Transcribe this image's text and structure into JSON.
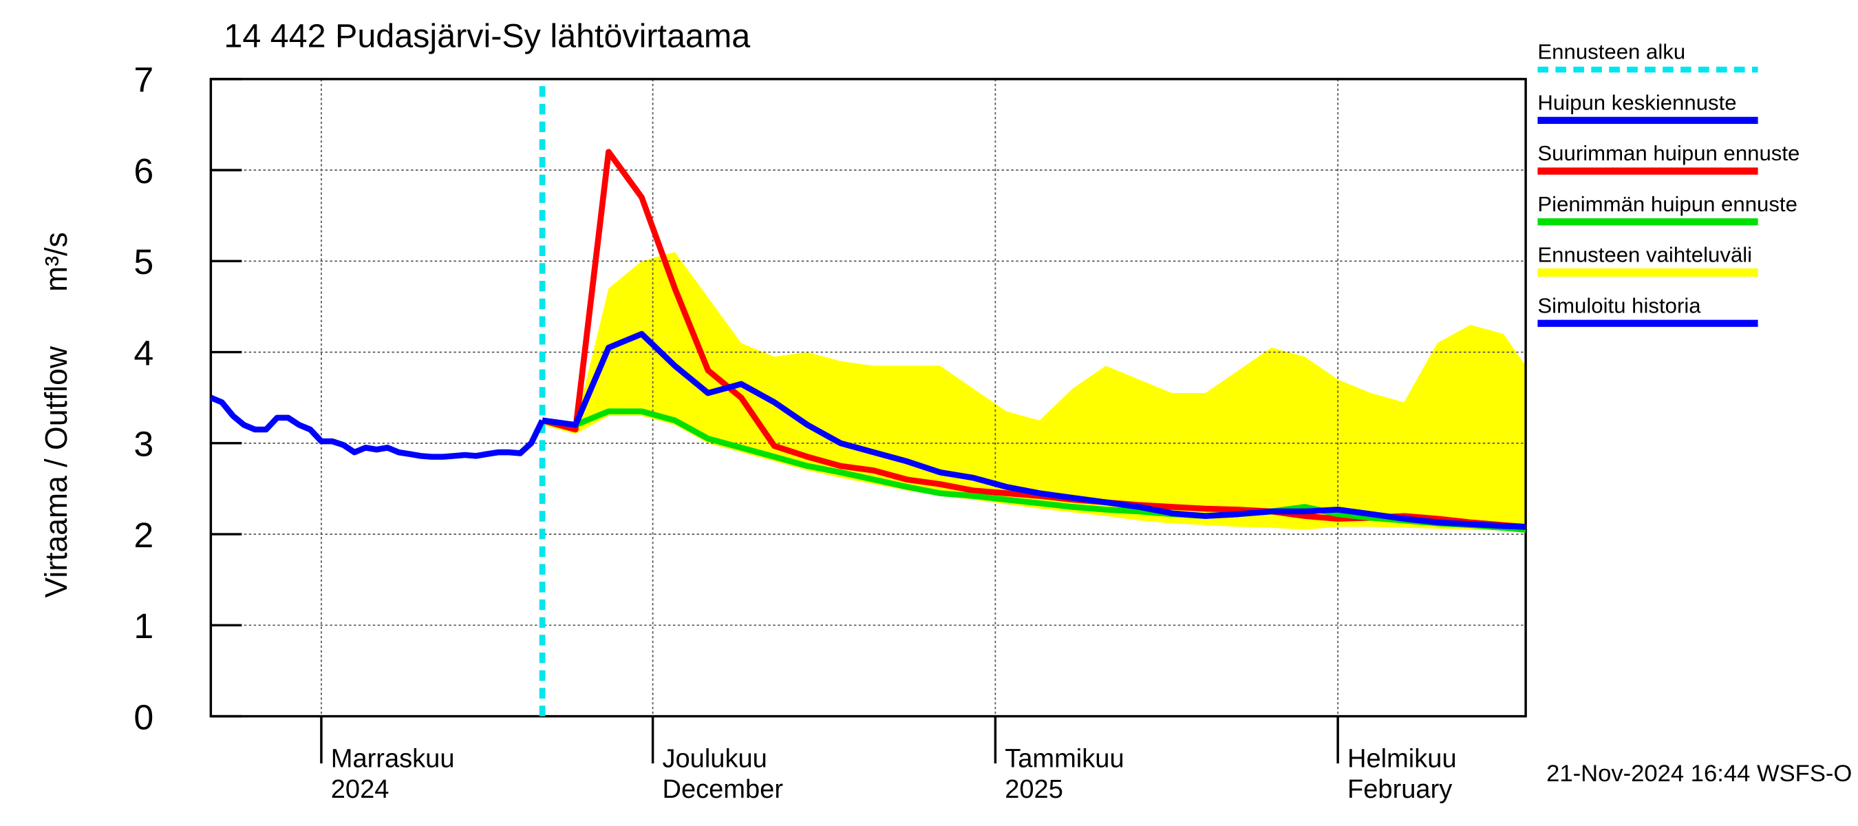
{
  "chart_data": {
    "type": "line",
    "title": "14 442 Pudasjärvi-Sy lähtövirtaama",
    "y_label": "Virtaama / Outflow",
    "y_unit": "m³/s",
    "footer": "21-Nov-2024 16:44 WSFS-O",
    "ylim": [
      0,
      7
    ],
    "yticks": [
      0,
      1,
      2,
      3,
      4,
      5,
      6,
      7
    ],
    "xlim": [
      0,
      119
    ],
    "xticks": [
      {
        "value": 10,
        "label": "Marraskuu"
      },
      {
        "value": 40,
        "label": "Joulukuu"
      },
      {
        "value": 71,
        "label": "Tammikuu"
      },
      {
        "value": 102,
        "label": "Helmikuu"
      }
    ],
    "xtick_sublabels": [
      "2024",
      "December",
      "2025",
      "February"
    ],
    "grid": true,
    "forecast_start": {
      "name": "Ennusteen alku",
      "color": "#00e5ee",
      "x": 30
    },
    "series": [
      {
        "name": "Huipun keskiennuste",
        "color": "#0000ff",
        "kind": "line",
        "x": [
          30,
          33,
          36,
          39,
          42,
          45,
          48,
          51,
          54,
          57,
          60,
          63,
          66,
          69,
          72,
          75,
          78,
          81,
          84,
          87,
          90,
          93,
          96,
          99,
          102,
          105,
          108,
          111,
          114,
          117,
          119
        ],
        "values": [
          3.25,
          3.2,
          4.05,
          4.2,
          3.85,
          3.55,
          3.65,
          3.45,
          3.2,
          3.0,
          2.9,
          2.8,
          2.68,
          2.62,
          2.52,
          2.45,
          2.4,
          2.35,
          2.3,
          2.23,
          2.2,
          2.22,
          2.25,
          2.25,
          2.27,
          2.22,
          2.17,
          2.13,
          2.11,
          2.09,
          2.08
        ]
      },
      {
        "name": "Suurimman huipun ennuste",
        "color": "#ff0000",
        "kind": "line",
        "x": [
          30,
          33,
          36,
          39,
          42,
          45,
          48,
          51,
          54,
          57,
          60,
          63,
          66,
          69,
          72,
          75,
          78,
          81,
          84,
          87,
          90,
          93,
          96,
          99,
          102,
          105,
          108,
          111,
          114,
          117,
          119
        ],
        "values": [
          3.25,
          3.15,
          6.2,
          5.7,
          4.7,
          3.8,
          3.5,
          2.97,
          2.85,
          2.75,
          2.7,
          2.6,
          2.55,
          2.48,
          2.45,
          2.42,
          2.38,
          2.35,
          2.32,
          2.3,
          2.28,
          2.27,
          2.25,
          2.2,
          2.17,
          2.18,
          2.2,
          2.17,
          2.13,
          2.1,
          2.08
        ]
      },
      {
        "name": "Pienimmän huipun ennuste",
        "color": "#00e000",
        "kind": "line",
        "x": [
          30,
          33,
          36,
          39,
          42,
          45,
          48,
          51,
          54,
          57,
          60,
          63,
          66,
          69,
          72,
          75,
          78,
          81,
          84,
          87,
          90,
          93,
          96,
          99,
          102,
          105,
          108,
          111,
          114,
          117,
          119
        ],
        "values": [
          3.25,
          3.2,
          3.35,
          3.35,
          3.25,
          3.05,
          2.95,
          2.85,
          2.75,
          2.68,
          2.6,
          2.52,
          2.45,
          2.42,
          2.38,
          2.34,
          2.3,
          2.27,
          2.25,
          2.22,
          2.2,
          2.22,
          2.25,
          2.3,
          2.22,
          2.18,
          2.15,
          2.12,
          2.1,
          2.07,
          2.05
        ]
      },
      {
        "name": "Ennusteen vaihteluväli",
        "color": "#ffff00",
        "kind": "band",
        "x": [
          30,
          33,
          36,
          39,
          42,
          45,
          48,
          51,
          54,
          57,
          60,
          63,
          66,
          69,
          72,
          75,
          78,
          81,
          84,
          87,
          90,
          93,
          96,
          99,
          102,
          105,
          108,
          111,
          114,
          117,
          119
        ],
        "upper": [
          3.25,
          3.2,
          4.7,
          5.0,
          5.1,
          4.6,
          4.1,
          3.95,
          4.0,
          3.9,
          3.85,
          3.85,
          3.85,
          3.6,
          3.35,
          3.25,
          3.6,
          3.85,
          3.7,
          3.55,
          3.55,
          3.8,
          4.05,
          3.95,
          3.7,
          3.55,
          3.45,
          4.1,
          4.3,
          4.2,
          3.85
        ],
        "lower": [
          3.2,
          3.1,
          3.3,
          3.3,
          3.2,
          3.0,
          2.9,
          2.8,
          2.7,
          2.62,
          2.55,
          2.48,
          2.42,
          2.38,
          2.33,
          2.28,
          2.24,
          2.2,
          2.15,
          2.12,
          2.1,
          2.08,
          2.07,
          2.05,
          2.08,
          2.08,
          2.07,
          2.06,
          2.05,
          2.04,
          2.03
        ]
      },
      {
        "name": "Simuloitu historia",
        "color": "#0000ff",
        "kind": "line",
        "x": [
          0,
          1,
          2,
          3,
          4,
          5,
          6,
          7,
          8,
          9,
          10,
          11,
          12,
          13,
          14,
          15,
          16,
          17,
          18,
          19,
          20,
          21,
          22,
          23,
          24,
          25,
          26,
          27,
          28,
          29,
          30
        ],
        "values": [
          3.5,
          3.45,
          3.3,
          3.2,
          3.15,
          3.15,
          3.28,
          3.28,
          3.2,
          3.15,
          3.02,
          3.02,
          2.98,
          2.9,
          2.95,
          2.93,
          2.95,
          2.9,
          2.88,
          2.86,
          2.85,
          2.85,
          2.86,
          2.87,
          2.86,
          2.88,
          2.9,
          2.9,
          2.89,
          3.0,
          3.25
        ]
      }
    ]
  }
}
